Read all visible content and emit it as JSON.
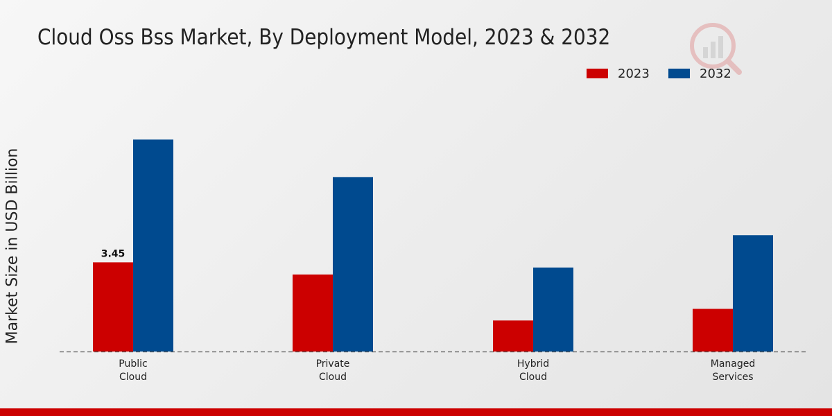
{
  "chart_data": {
    "type": "bar",
    "title": "Cloud Oss Bss Market, By Deployment Model, 2023 & 2032",
    "xlabel": "",
    "ylabel": "Market Size in USD Billion",
    "categories": [
      "Public\nCloud",
      "Private\nCloud",
      "Hybrid\nCloud",
      "Managed\nServices"
    ],
    "series": [
      {
        "name": "2023",
        "color": "#cc0000",
        "values": [
          3.45,
          2.98,
          1.2,
          1.65
        ]
      },
      {
        "name": "2032",
        "color": "#004a8f",
        "values": [
          8.2,
          6.75,
          3.25,
          4.5
        ]
      }
    ],
    "data_labels": [
      {
        "series": 0,
        "category": 0,
        "text": "3.45"
      }
    ],
    "ylim": [
      0,
      13.6
    ],
    "grid": false,
    "legend_position": "top-right"
  },
  "colors": {
    "bottom_bar": "#cc0000",
    "text": "#222222",
    "baseline": "#555555"
  }
}
